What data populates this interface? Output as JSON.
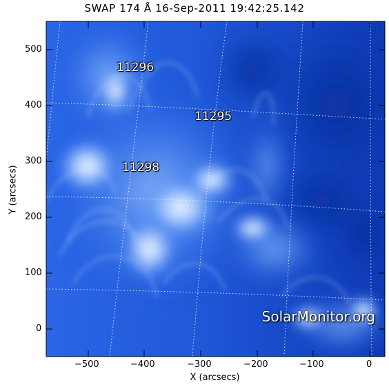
{
  "title": "SWAP 174 Å 16-Sep-2011 19:42:25.142",
  "xlabel": "X (arcsecs)",
  "ylabel": "Y (arcsecs)",
  "x_ticks": [
    "−500",
    "−400",
    "−300",
    "−200",
    "−100",
    "0"
  ],
  "y_ticks": [
    "0",
    "100",
    "200",
    "300",
    "400",
    "500"
  ],
  "active_regions": [
    "11296",
    "11295",
    "11298"
  ],
  "watermark": "SolarMonitor.org",
  "colors": {
    "background_dark": "#062a9e",
    "background_mid": "#1c5fe0",
    "bright": "#cfe3ff",
    "grid": "#ffffff"
  }
}
